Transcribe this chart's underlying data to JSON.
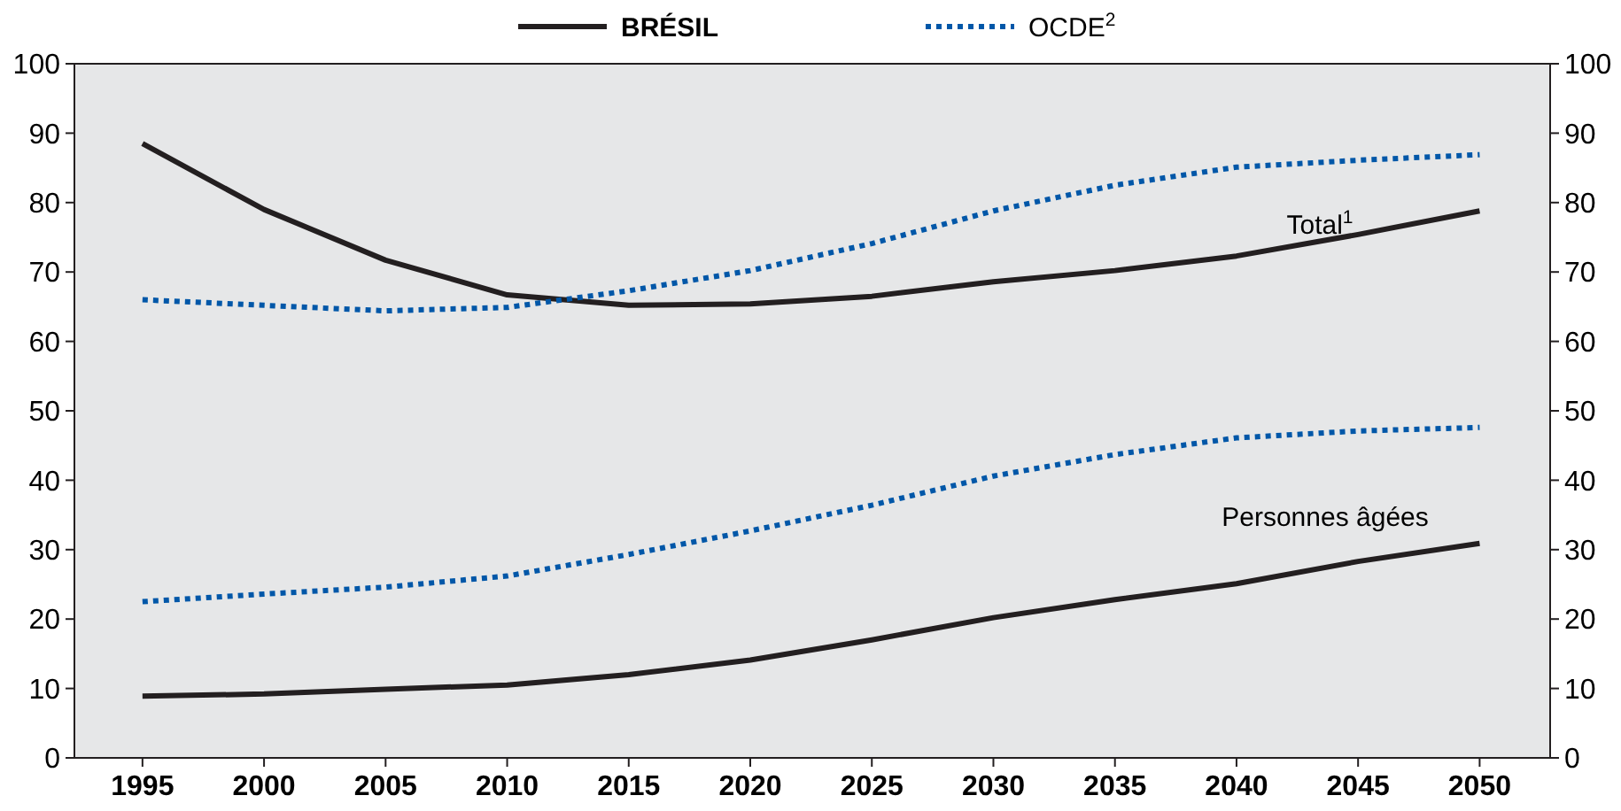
{
  "chart_data": {
    "type": "line",
    "x": [
      1995,
      2000,
      2005,
      2010,
      2015,
      2020,
      2025,
      2030,
      2035,
      2040,
      2045,
      2050
    ],
    "xlim": [
      1992.2,
      2052.9
    ],
    "xticks": [
      1995,
      2000,
      2005,
      2010,
      2015,
      2020,
      2025,
      2030,
      2035,
      2040,
      2045,
      2050
    ],
    "ylim": [
      0,
      100
    ],
    "yticks": [
      0,
      10,
      20,
      30,
      40,
      50,
      60,
      70,
      80,
      90,
      100
    ],
    "y2lim": [
      0,
      100
    ],
    "y2ticks": [
      0,
      10,
      20,
      30,
      40,
      50,
      60,
      70,
      80,
      90,
      100
    ],
    "legend": "top",
    "grid": false,
    "series": [
      {
        "name": "BRÉSIL",
        "color": "#231f20",
        "line_style": "solid",
        "values": [
          88.5,
          79,
          71.7,
          66.7,
          65.2,
          65.4,
          66.5,
          68.6,
          70.2,
          72.3,
          75.4,
          78.8
        ]
      },
      {
        "name": "OCDE$^{2}$",
        "color": "#0057a8",
        "line_style": "dotted",
        "values": [
          66,
          65.2,
          64.4,
          64.9,
          67.3,
          70.2,
          74.1,
          78.8,
          82.5,
          85.1,
          86.1,
          86.9
        ]
      },
      {
        "color": "#231f20",
        "line_style": "solid",
        "values": [
          8.9,
          9.2,
          9.9,
          10.5,
          12.0,
          14.1,
          17.0,
          20.2,
          22.8,
          25.1,
          28.3,
          30.9
        ]
      },
      {
        "color": "#0057a8",
        "line_style": "dotted",
        "values": [
          22.5,
          23.6,
          24.6,
          26.2,
          29.3,
          32.7,
          36.4,
          40.6,
          43.7,
          46.1,
          47.1,
          47.6
        ]
      }
    ],
    "annotations": [
      "Total$^{1}$",
      "Personnes âgées"
    ]
  }
}
